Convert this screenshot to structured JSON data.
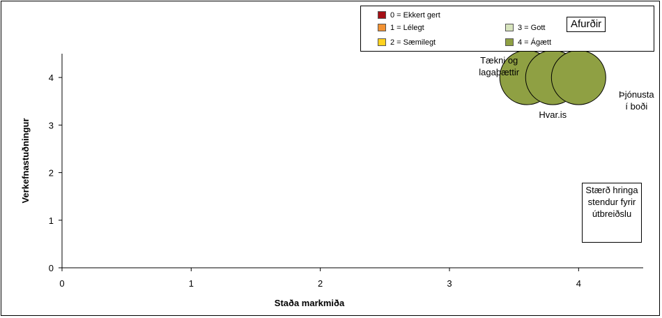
{
  "chart_data": {
    "type": "bubble",
    "xlabel": "Staða markmiða",
    "ylabel": "Verkefnastuðningur",
    "xlim": [
      0,
      4.5
    ],
    "ylim": [
      0,
      4.5
    ],
    "xticks": [
      0,
      1,
      2,
      3,
      4
    ],
    "yticks": [
      0,
      1,
      2,
      3,
      4
    ],
    "grid": false,
    "points": [
      {
        "label": "Tækni og\nlagaþættir",
        "x": 3.6,
        "y": 4,
        "size": 1,
        "color_level": 4
      },
      {
        "label": "Hvar.is",
        "x": 3.8,
        "y": 4,
        "size": 1,
        "color_level": 4
      },
      {
        "label": "Þjónusta\ní boði",
        "x": 4.0,
        "y": 4,
        "size": 1,
        "color_level": 4
      }
    ],
    "legend": {
      "title": "Afurðir",
      "placement": "top-right",
      "items": [
        {
          "label": "0 = Ekkert gert",
          "color": "#A50F15"
        },
        {
          "label": "1 = Lélegt",
          "color": "#F29233"
        },
        {
          "label": "2 = Sæmilegt",
          "color": "#FFD21F"
        },
        {
          "label": "3 = Gott",
          "color": "#D7E4BD"
        },
        {
          "label": "4 = Ágætt",
          "color": "#8FA043"
        }
      ]
    },
    "note": "Stærð hringa stendur fyrir útbreiðslu"
  }
}
